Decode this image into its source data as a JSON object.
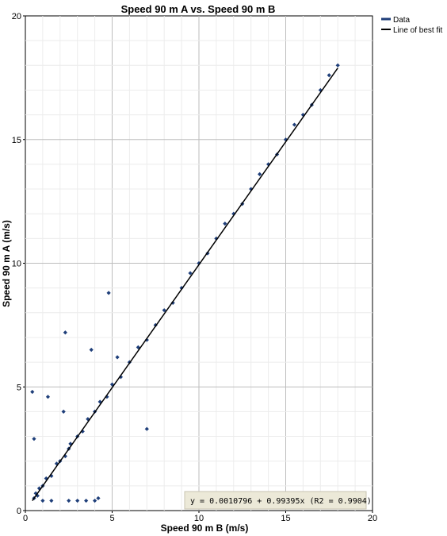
{
  "chart_data": {
    "type": "scatter",
    "title": "Speed 90 m A vs. Speed 90 m B",
    "xlabel": "Speed 90 m B (m/s)",
    "ylabel": "Speed 90 m A (m/s)",
    "xlim": [
      0,
      20
    ],
    "ylim": [
      0,
      20
    ],
    "x_ticks": [
      "0",
      "5",
      "10",
      "15",
      "20"
    ],
    "y_ticks": [
      "0",
      "5",
      "10",
      "15",
      "20"
    ],
    "grid": true,
    "legend_position": "top-right",
    "colors": {
      "data": "#1f3f7a",
      "fit": "#000000",
      "grid": "#cccccc",
      "equation_box": "#ece9d8"
    },
    "series": [
      {
        "name": "Data",
        "marker": "diamond",
        "note_points": "dense cloud of many thousands of points along y ≈ x from ~0.4 to ~18 m/s; representative sample below",
        "x": [
          0.5,
          0.6,
          0.7,
          0.8,
          1.0,
          1.2,
          1.5,
          1.8,
          2.0,
          2.3,
          2.6,
          3.0,
          3.3,
          3.6,
          4.0,
          4.3,
          4.7,
          5.0,
          5.5,
          6.0,
          6.5,
          7.0,
          7.5,
          8.0,
          8.5,
          9.0,
          9.5,
          10.0,
          10.5,
          11.0,
          11.5,
          12.0,
          12.5,
          13.0,
          13.5,
          14.0,
          14.5,
          15.0,
          15.5,
          16.0,
          16.5,
          17.0,
          17.5,
          18.0,
          0.4,
          0.5,
          1.0,
          1.5,
          2.5,
          3.0,
          3.5,
          4.0,
          4.2,
          2.2,
          1.3,
          2.5,
          3.8,
          7.0,
          2.3,
          4.8,
          5.3
        ],
        "y": [
          0.5,
          0.7,
          0.6,
          0.9,
          1.0,
          1.3,
          1.4,
          1.9,
          2.0,
          2.2,
          2.7,
          3.0,
          3.2,
          3.7,
          4.0,
          4.4,
          4.6,
          5.1,
          5.4,
          6.0,
          6.6,
          6.9,
          7.5,
          8.1,
          8.4,
          9.0,
          9.6,
          10.0,
          10.4,
          11.0,
          11.6,
          12.0,
          12.4,
          13.0,
          13.6,
          14.0,
          14.4,
          15.0,
          15.6,
          16.0,
          16.4,
          17.0,
          17.6,
          18.0,
          4.8,
          2.9,
          0.4,
          0.4,
          0.4,
          0.4,
          0.4,
          0.4,
          0.5,
          4.0,
          4.6,
          2.5,
          6.5,
          3.3,
          7.2,
          8.8,
          6.2
        ]
      },
      {
        "name": "Line of best fit",
        "marker": "line",
        "x": [
          0.4,
          18.0
        ],
        "y": [
          0.399,
          17.892
        ]
      }
    ],
    "annotations": [
      {
        "text": "y = 0.0010796 + 0.99395x    (R2 = 0.9904)"
      }
    ]
  }
}
